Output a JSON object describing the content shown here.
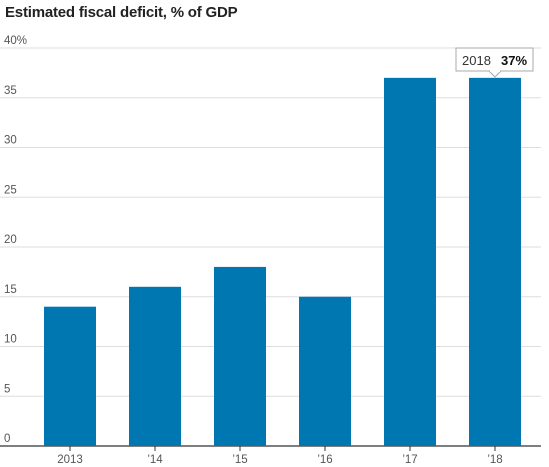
{
  "chart_data": {
    "type": "bar",
    "title": "Estimated fiscal deficit, % of GDP",
    "categories": [
      "2013",
      "’14",
      "’15",
      "’16",
      "’17",
      "’18"
    ],
    "values": [
      14,
      16,
      18,
      15,
      37,
      37
    ],
    "ylim": [
      0,
      40
    ],
    "yticks": [
      0,
      5,
      10,
      15,
      20,
      25,
      30,
      35,
      40
    ],
    "ytick_labels": [
      "0",
      "5",
      "10",
      "15",
      "20",
      "25",
      "30",
      "35",
      "40%"
    ],
    "grid": true,
    "bar_color": "#0077b0",
    "tooltip": {
      "year": "2018",
      "value": "37%"
    }
  }
}
